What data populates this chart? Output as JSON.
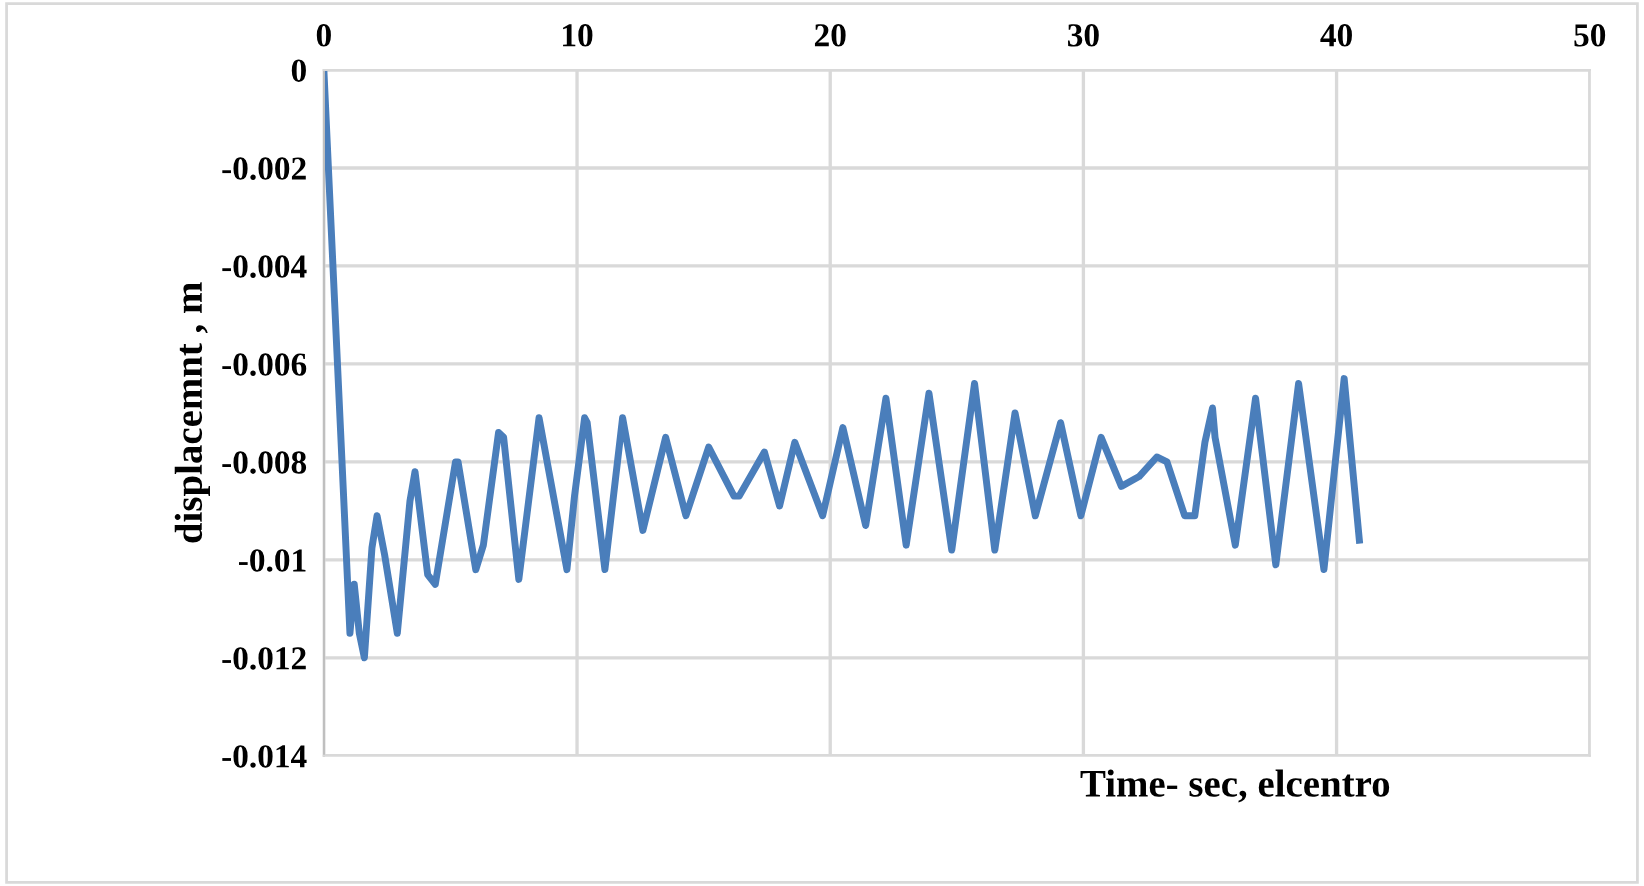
{
  "chart_data": {
    "type": "line",
    "xlabel": "Time- sec, elcentro",
    "ylabel": "displacemnt , m",
    "xlim": [
      0,
      50
    ],
    "xticks": [
      0,
      10,
      20,
      30,
      40,
      50
    ],
    "ylim": [
      -0.014,
      0
    ],
    "yticks": [
      -0.014,
      -0.012,
      -0.01,
      -0.008,
      -0.006,
      -0.004,
      -0.002,
      0
    ],
    "grid": true,
    "legend": false,
    "marker": "none",
    "line_style": "solid",
    "series": [
      {
        "color": "#4a7ebb",
        "x": [
          0,
          1.03,
          1.2,
          1.4,
          1.6,
          1.9,
          2.1,
          2.4,
          2.9,
          3.4,
          3.6,
          4.1,
          4.4,
          5.2,
          5.3,
          6.0,
          6.3,
          6.9,
          7.1,
          7.7,
          8.5,
          9.6,
          9.9,
          10.3,
          10.4,
          11.1,
          11.8,
          12.6,
          13.5,
          14.3,
          15.2,
          16.2,
          16.4,
          17.4,
          18.0,
          18.6,
          19.7,
          20.5,
          21.4,
          22.2,
          23.0,
          23.9,
          24.8,
          25.7,
          26.5,
          27.3,
          28.1,
          29.1,
          29.9,
          30.7,
          31.5,
          32.2,
          32.9,
          33.3,
          34.0,
          34.4,
          34.8,
          35.1,
          35.2,
          36.0,
          36.8,
          37.6,
          38.5,
          39.5,
          40.3,
          40.9
        ],
        "values": [
          0,
          -0.0115,
          -0.0105,
          -0.0115,
          -0.012,
          -0.00975,
          -0.0091,
          -0.0099,
          -0.0115,
          -0.0088,
          -0.0082,
          -0.0103,
          -0.0105,
          -0.008,
          -0.008,
          -0.0102,
          -0.0097,
          -0.0074,
          -0.0075,
          -0.0104,
          -0.0071,
          -0.0102,
          -0.0087,
          -0.0071,
          -0.0072,
          -0.0102,
          -0.0071,
          -0.0094,
          -0.0075,
          -0.0091,
          -0.0077,
          -0.0087,
          -0.0087,
          -0.0078,
          -0.0089,
          -0.0076,
          -0.0091,
          -0.0073,
          -0.0093,
          -0.0067,
          -0.0097,
          -0.0066,
          -0.0098,
          -0.0064,
          -0.0098,
          -0.007,
          -0.0091,
          -0.0072,
          -0.0091,
          -0.0075,
          -0.0085,
          -0.0083,
          -0.0079,
          -0.008,
          -0.0091,
          -0.0091,
          -0.0076,
          -0.0069,
          -0.0075,
          -0.0097,
          -0.0067,
          -0.0101,
          -0.0064,
          -0.0102,
          -0.0063,
          -0.0096
        ]
      }
    ]
  }
}
